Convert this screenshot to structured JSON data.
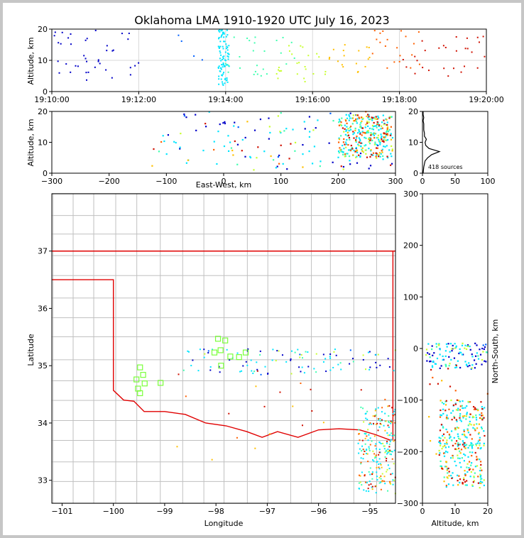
{
  "chart_data": [
    {
      "panel": "altitude-vs-time",
      "type": "scatter",
      "title": "Oklahoma LMA 1910-1920 UTC July 16, 2023",
      "xlabel": "",
      "ylabel": "Altitude, km",
      "xlim": [
        "19:10:00",
        "19:20:00"
      ],
      "ylim": [
        0,
        20
      ],
      "x_ticks": [
        "19:10:00",
        "19:12:00",
        "19:14:00",
        "19:16:00",
        "19:18:00",
        "19:20:00"
      ],
      "y_ticks": [
        "0",
        "10",
        "20"
      ],
      "grid": true,
      "color_scale": "time (blue to red)",
      "clusters": [
        {
          "time_from": "19:10:00",
          "time_to": "19:12:00",
          "alt_from": 3,
          "alt_to": 20,
          "color": "#0000c8",
          "count": 40
        },
        {
          "time_from": "19:12:00",
          "time_to": "19:13:30",
          "alt_from": 9,
          "alt_to": 20,
          "color": "#0060ff",
          "count": 4
        },
        {
          "time_from": "19:13:50",
          "time_to": "19:14:05",
          "alt_from": 2,
          "alt_to": 20,
          "color": "#00e6ff",
          "count": 90
        },
        {
          "time_from": "19:14:00",
          "time_to": "19:15:40",
          "alt_from": 5,
          "alt_to": 18,
          "color": "#40ffb0",
          "count": 25
        },
        {
          "time_from": "19:15:10",
          "time_to": "19:16:20",
          "alt_from": 3,
          "alt_to": 16,
          "color": "#c8ff30",
          "count": 25
        },
        {
          "time_from": "19:16:20",
          "time_to": "19:17:20",
          "alt_from": 6,
          "alt_to": 17,
          "color": "#ffc000",
          "count": 18
        },
        {
          "time_from": "19:17:20",
          "time_to": "19:18:30",
          "alt_from": 7,
          "alt_to": 20,
          "color": "#ff6000",
          "count": 20
        },
        {
          "time_from": "19:18:00",
          "time_to": "19:20:00",
          "alt_from": 4,
          "alt_to": 18,
          "color": "#d01000",
          "count": 28
        }
      ]
    },
    {
      "panel": "altitude-vs-east-west",
      "type": "scatter",
      "xlabel": "East-West, km",
      "ylabel": "Altitude, km",
      "xlim": [
        -300,
        300
      ],
      "ylim": [
        0,
        20
      ],
      "x_ticks": [
        "−300",
        "−200",
        "−100",
        "0",
        "100",
        "200",
        "300"
      ],
      "y_ticks": [
        "0",
        "10",
        "20"
      ]
    },
    {
      "panel": "altitude-histogram",
      "type": "line",
      "xlim": [
        0,
        100
      ],
      "ylim": [
        0,
        20
      ],
      "x_ticks": [
        "0",
        "50",
        "100"
      ],
      "y_ticks": [
        "0",
        "10",
        "20"
      ],
      "annotation": "418 sources",
      "altitudes": [
        0,
        2,
        4,
        5,
        6,
        7,
        8,
        9,
        10,
        11,
        12,
        13,
        14,
        15,
        16,
        17,
        18,
        19,
        20
      ],
      "counts": [
        1,
        2,
        4,
        8,
        14,
        26,
        10,
        5,
        4,
        6,
        3,
        3,
        2,
        2,
        2,
        1,
        2,
        1,
        1
      ]
    },
    {
      "panel": "plan-view-map",
      "type": "scatter",
      "xlabel": "Longitude",
      "ylabel": "Latitude",
      "xlim": [
        -101.2,
        -94.5
      ],
      "ylim": [
        32.6,
        38.0
      ],
      "x_ticks": [
        "−101",
        "−100",
        "−99",
        "−98",
        "−97",
        "−96",
        "−95"
      ],
      "y_ticks": [
        "33",
        "34",
        "35",
        "36",
        "37"
      ],
      "stations_color": "#7aff3a",
      "stations": [
        {
          "lon": -99.48,
          "lat": 34.97
        },
        {
          "lon": -99.55,
          "lat": 34.76
        },
        {
          "lon": -99.42,
          "lat": 34.84
        },
        {
          "lon": -99.39,
          "lat": 34.69
        },
        {
          "lon": -99.52,
          "lat": 34.6
        },
        {
          "lon": -99.48,
          "lat": 34.52
        },
        {
          "lon": -99.08,
          "lat": 34.7
        },
        {
          "lon": -97.96,
          "lat": 35.47
        },
        {
          "lon": -97.82,
          "lat": 35.44
        },
        {
          "lon": -97.91,
          "lat": 35.27
        },
        {
          "lon": -98.03,
          "lat": 35.23
        },
        {
          "lon": -97.72,
          "lat": 35.16
        },
        {
          "lon": -97.55,
          "lat": 35.15
        },
        {
          "lon": -97.42,
          "lat": 35.23
        },
        {
          "lon": -97.9,
          "lat": 35.0
        }
      ]
    },
    {
      "panel": "north-south-vs-altitude",
      "type": "scatter",
      "xlabel": "Altitude, km",
      "ylabel": "North-South, km",
      "xlim": [
        0,
        20
      ],
      "ylim": [
        -300,
        300
      ],
      "x_ticks": [
        "0",
        "10",
        "20"
      ],
      "y_ticks": [
        "−300",
        "−200",
        "−100",
        "0",
        "100",
        "200",
        "300"
      ]
    }
  ],
  "colors": {
    "border": "#c6c6c6",
    "state_line": "#e00000",
    "county_line": "#c0c0c0",
    "grid": "#d8d8d8"
  }
}
